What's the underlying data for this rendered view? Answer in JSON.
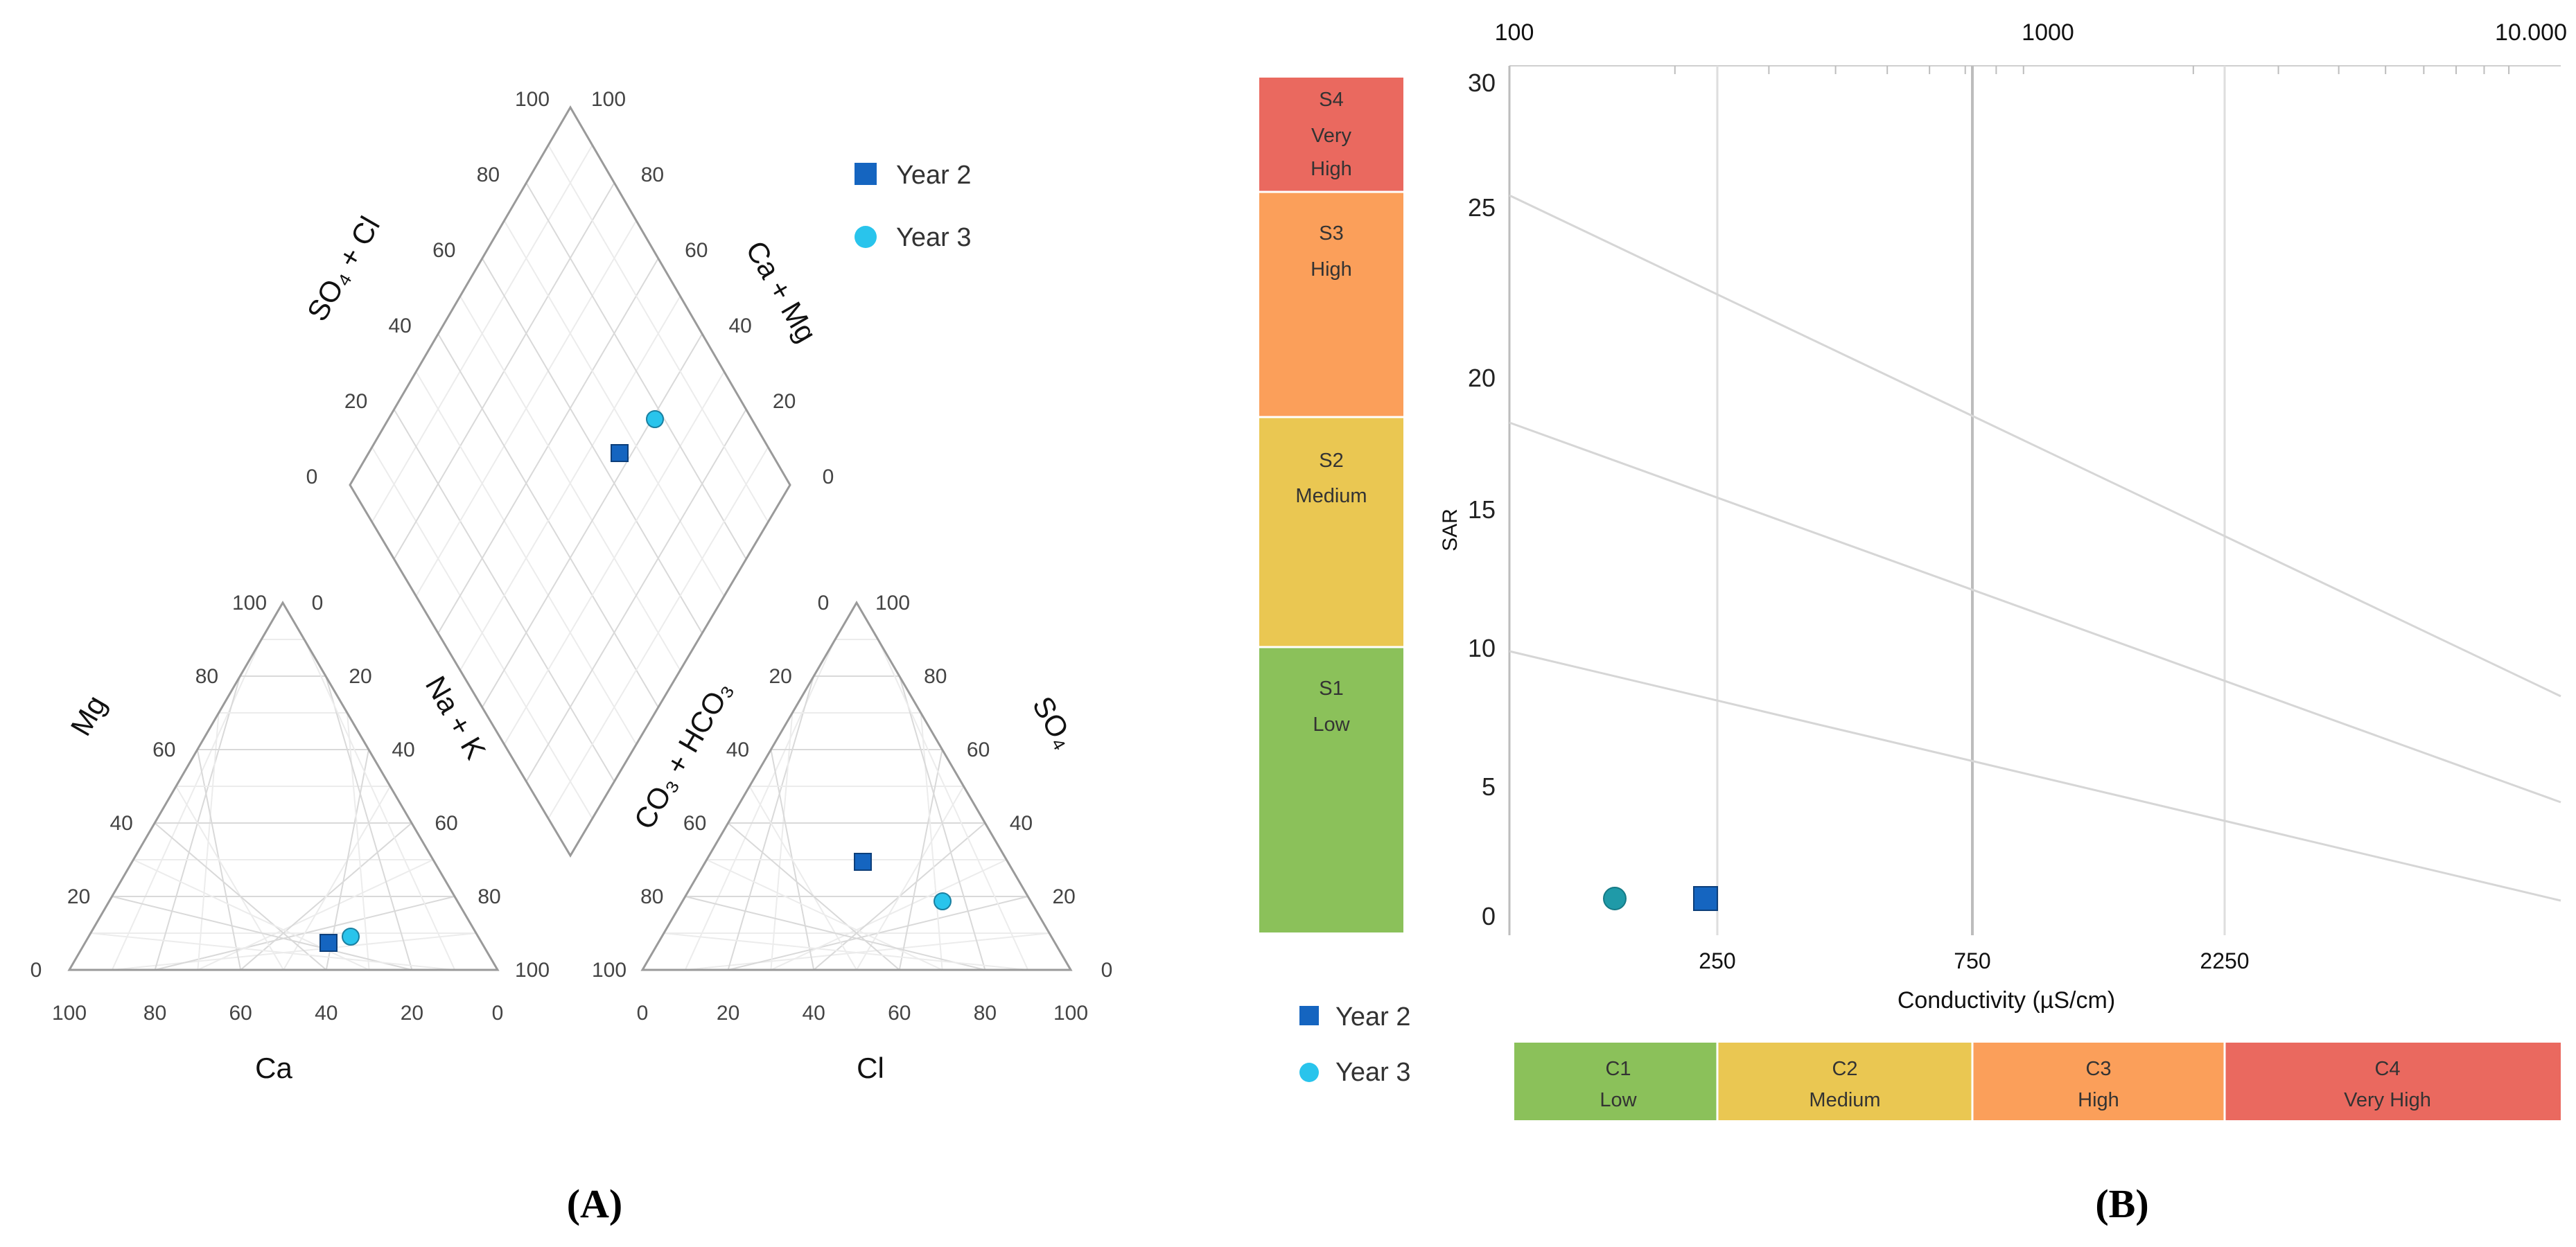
{
  "colors": {
    "year2": "#1565c0",
    "year3": "#29c4ec",
    "low": "#8bc15a",
    "medium": "#eac752",
    "high": "#fb9f5a",
    "very_high": "#ea695f"
  },
  "panel_a": {
    "label": "(A)",
    "legend": [
      "Year 2",
      "Year 3"
    ],
    "axes": {
      "diamond_left": "SO₄ + Cl",
      "diamond_right": "Ca + Mg",
      "cation_left": "Mg",
      "cation_right": "Na + K",
      "cation_bottom": "Ca",
      "anion_left": "CO₃ + HCO₃",
      "anion_right": "SO₄",
      "anion_bottom": "Cl"
    },
    "tick_values": [
      "0",
      "20",
      "40",
      "60",
      "80",
      "100"
    ]
  },
  "panel_b": {
    "label": "(B)",
    "legend": [
      "Year 2",
      "Year 3"
    ],
    "top_axis_ticks": [
      "100",
      "1000",
      "10.000"
    ],
    "y_axis_label": "SAR",
    "y_ticks": [
      "0",
      "5",
      "10",
      "15",
      "20",
      "25",
      "30"
    ],
    "x_axis_label": "Conductivity (µS/cm)",
    "x_ticks": [
      "250",
      "750",
      "2250"
    ],
    "s_zones": [
      {
        "code": "S4",
        "line2": "Very",
        "line3": "High"
      },
      {
        "code": "S3",
        "line2": "High",
        "line3": ""
      },
      {
        "code": "S2",
        "line2": "Medium",
        "line3": ""
      },
      {
        "code": "S1",
        "line2": "Low",
        "line3": ""
      }
    ],
    "c_zones": [
      {
        "code": "C1",
        "name": "Low"
      },
      {
        "code": "C2",
        "name": "Medium"
      },
      {
        "code": "C3",
        "name": "High"
      },
      {
        "code": "C4",
        "name": "Very High"
      }
    ]
  },
  "chart_data": [
    {
      "type": "scatter",
      "subtype": "piper",
      "title": "(A)",
      "series": [
        {
          "name": "Year 2",
          "cations": {
            "Ca": 40,
            "Mg": 6,
            "NaK": 54
          },
          "anions": {
            "Cl": 50,
            "SO4": 35,
            "CO3HCO3": 15
          },
          "diamond": {
            "SO4Cl": 85,
            "CaMg": 46
          }
        },
        {
          "name": "Year 3",
          "cations": {
            "Ca": 35,
            "Mg": 8,
            "NaK": 57
          },
          "anions": {
            "Cl": 68,
            "SO4": 20,
            "CO3HCO3": 12
          },
          "diamond": {
            "SO4Cl": 88,
            "CaMg": 43
          }
        }
      ]
    },
    {
      "type": "scatter",
      "subtype": "riverside-wilcox",
      "title": "(B)",
      "xlabel": "Conductivity (µS/cm)",
      "ylabel": "SAR",
      "ylim": [
        0,
        30
      ],
      "series": [
        {
          "name": "Year 2",
          "conductivity": 230,
          "sar": 1
        },
        {
          "name": "Year 3",
          "conductivity": 180,
          "sar": 1
        }
      ]
    }
  ]
}
